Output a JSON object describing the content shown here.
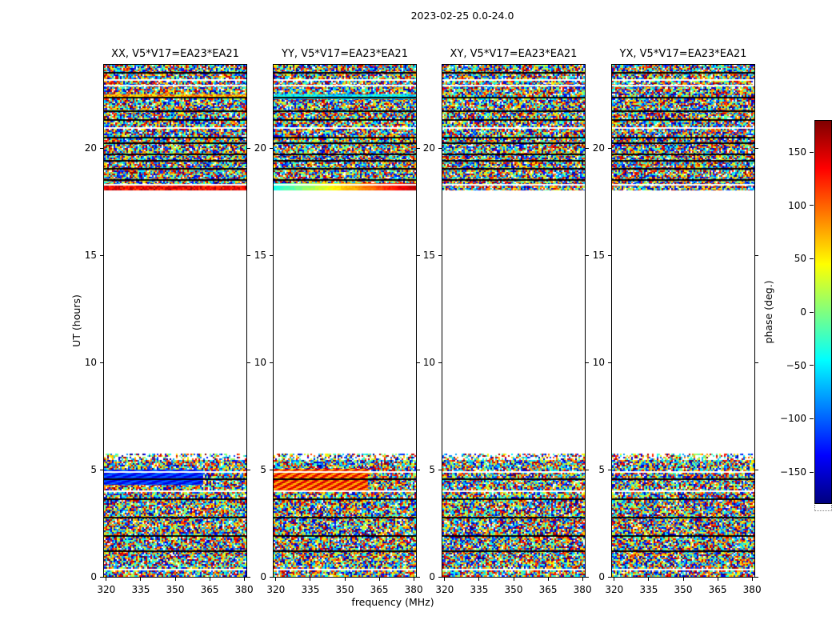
{
  "figure": {
    "title": "2023-02-25 0.0-24.0",
    "xlabel": "frequency (MHz)",
    "ylabel": "UT (hours)",
    "colorbar_label": "phase (deg.)"
  },
  "panels": [
    {
      "id": "XX",
      "title": "XX, V5*V17=EA23*EA21"
    },
    {
      "id": "YY",
      "title": "YY, V5*V17=EA23*EA21"
    },
    {
      "id": "XY",
      "title": "XY, V5*V17=EA23*EA21"
    },
    {
      "id": "YX",
      "title": "YX, V5*V17=EA23*EA21"
    }
  ],
  "axes": {
    "xticks": [
      "320",
      "335",
      "350",
      "365",
      "380"
    ],
    "xtick_values": [
      320,
      335,
      350,
      365,
      380
    ],
    "yticks": [
      "0",
      "5",
      "10",
      "15",
      "20"
    ],
    "ytick_values": [
      0,
      5,
      10,
      15,
      20
    ],
    "xlim": [
      319,
      381
    ],
    "ylim": [
      0,
      23.9
    ]
  },
  "colorbar": {
    "ticks": [
      "150",
      "100",
      "50",
      "0",
      "−50",
      "−100",
      "−150"
    ],
    "tick_values": [
      150,
      100,
      50,
      0,
      -50,
      -100,
      -150
    ],
    "vmin": -180,
    "vmax": 180,
    "colormap": "jet",
    "stops": [
      "#00007f",
      "#0000ff",
      "#00ffff",
      "#ffff00",
      "#ff0000",
      "#7f0000"
    ],
    "stop_positions": [
      0,
      0.125,
      0.375,
      0.625,
      0.875,
      1
    ]
  },
  "chart_data": {
    "type": "heatmap",
    "title": "2023-02-25 0.0-24.0",
    "date": "2023-02-25",
    "time_span_hours": [
      0.0,
      24.0
    ],
    "xlabel": "frequency (MHz)",
    "ylabel": "UT (hours)",
    "value_label": "phase (deg.)",
    "colormap": "jet",
    "baseline": "V5*V17=EA23*EA21",
    "panels": [
      "XX, V5*V17=EA23*EA21",
      "YY, V5*V17=EA23*EA21",
      "XY, V5*V17=EA23*EA21",
      "YX, V5*V17=EA23*EA21"
    ],
    "x_range_mhz": [
      319,
      381
    ],
    "y_range_hours": [
      0,
      23.9
    ],
    "value_range_deg": [
      -180,
      180
    ],
    "observed_time_blocks_hours": [
      [
        0,
        5.75
      ],
      [
        18.05,
        23.9
      ]
    ],
    "gap_hours": [
      5.75,
      18.05
    ],
    "texture": "uniformly random phase speckle (full jet color range) with horizontal black/white scan-boundary lines shared across all four panels; central 5.75h-18.05h interval contains no data (white)",
    "features": [
      {
        "panel": 0,
        "pol": "XX",
        "t0": 18.05,
        "t1": 18.32,
        "f0": 319,
        "f1": 381,
        "style": "warm-band",
        "desc": "bright red coherent band at bottom edge of evening block"
      },
      {
        "panel": 1,
        "pol": "YY",
        "t0": 18.05,
        "t1": 18.38,
        "f0": 319,
        "f1": 381,
        "style": "gradient-cyan-red",
        "desc": "cyan-to-red coherent band at bottom edge of evening block"
      },
      {
        "panel": 0,
        "pol": "XX",
        "t0": 22.32,
        "t1": 22.52,
        "f0": 319,
        "f1": 381,
        "style": "amber-band",
        "desc": "yellow-orange streak near 22.4h"
      },
      {
        "panel": 1,
        "pol": "YY",
        "t0": 22.28,
        "t1": 22.5,
        "f0": 319,
        "f1": 381,
        "style": "cyan-band",
        "desc": "pale cyan streak near 22.4h"
      },
      {
        "panel": 0,
        "pol": "XX",
        "t0": 4.3,
        "t1": 5.0,
        "f0": 319,
        "f1": 362,
        "style": "blue-waves",
        "desc": "dark blue wavy coherent patch 4.3-5.0h below 362 MHz"
      },
      {
        "panel": 1,
        "pol": "YY",
        "t0": 4.0,
        "t1": 5.05,
        "f0": 319,
        "f1": 360,
        "style": "warm-waves",
        "desc": "red-orange striped coherent patch 4.0-5.05h below 360 MHz"
      }
    ]
  }
}
